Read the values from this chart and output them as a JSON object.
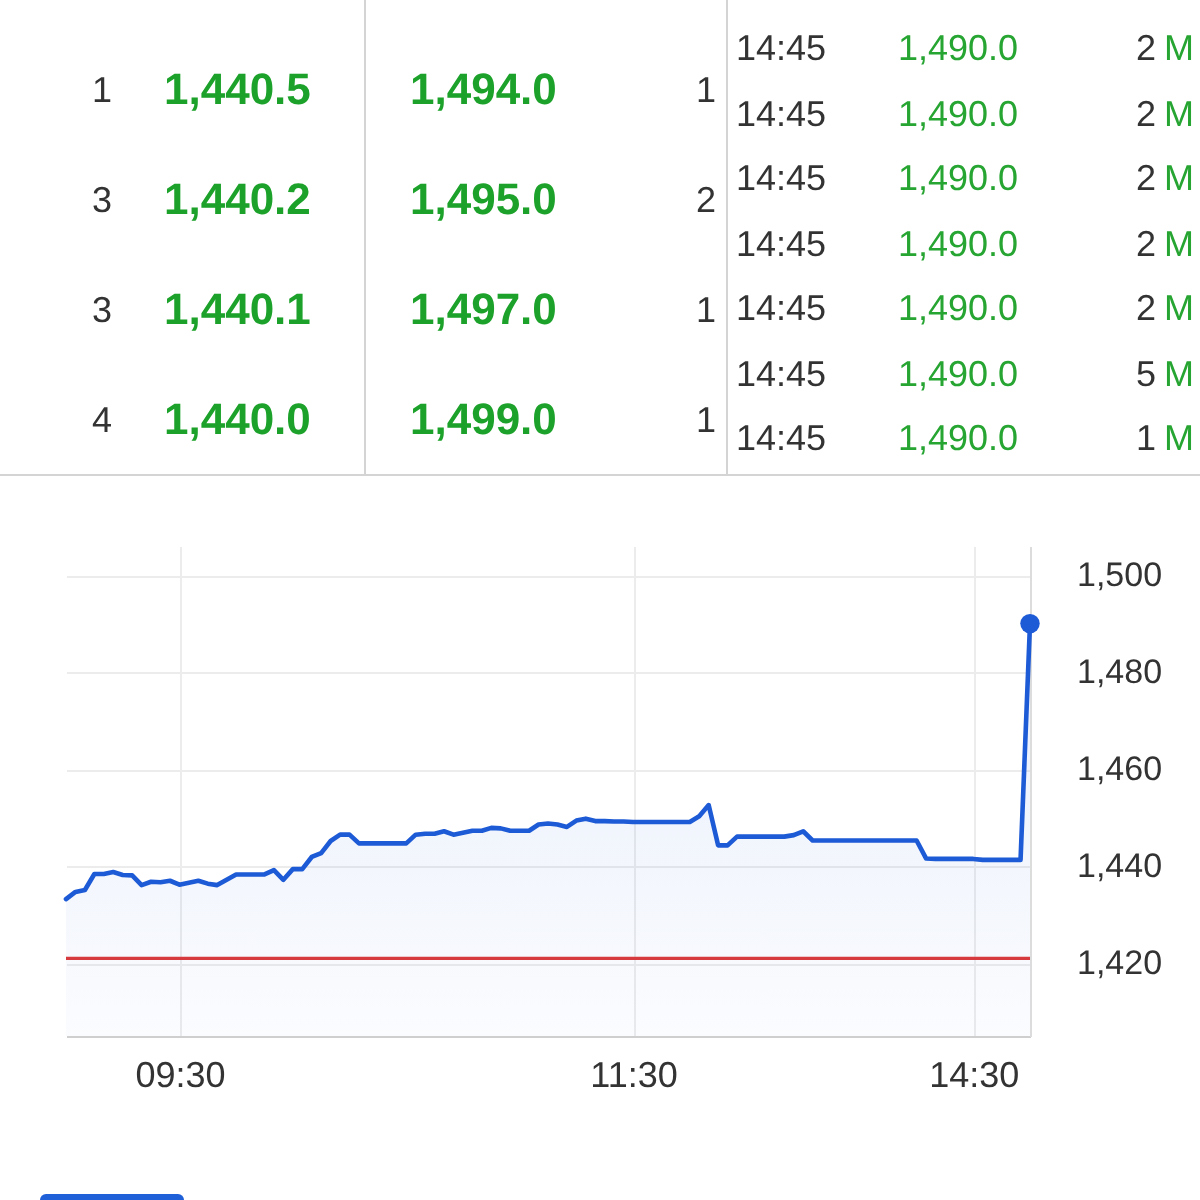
{
  "chart_data": [
    {
      "type": "other",
      "annotations": [
        "1",
        "1,440.5",
        "1,494.0",
        "1",
        "3",
        "1,440.2",
        "1,495.0",
        "2",
        "3",
        "1,440.1",
        "1,497.0",
        "1",
        "4",
        "1,440.0",
        "1,499.0",
        "1"
      ]
    },
    {
      "type": "other",
      "annotations": [
        "14:45",
        "1,490.0",
        "2",
        "M",
        "14:45",
        "1,490.0",
        "2",
        "M",
        "14:45",
        "1,490.0",
        "2",
        "M",
        "14:45",
        "1,490.0",
        "2",
        "M",
        "14:45",
        "1,490.0",
        "2",
        "M",
        "14:45",
        "1,490.0",
        "5",
        "M",
        "14:45",
        "1,490.0",
        "1",
        "M"
      ]
    },
    {
      "type": "area",
      "categories": [
        null,
        null,
        null,
        null,
        null,
        null,
        null,
        null,
        null,
        null,
        null,
        null,
        "09:30",
        null,
        null,
        null,
        null,
        null,
        null,
        null,
        null,
        null,
        null,
        null,
        null,
        null,
        null,
        null,
        null,
        null,
        null,
        null,
        null,
        null,
        null,
        null,
        null,
        null,
        null,
        null,
        null,
        null,
        null,
        null,
        null,
        null,
        null,
        null,
        null,
        null,
        null,
        null,
        null,
        null,
        null,
        null,
        null,
        null,
        null,
        null,
        "11:30",
        null,
        null,
        null,
        null,
        null,
        null,
        null,
        null,
        null,
        null,
        null,
        null,
        null,
        null,
        null,
        null,
        null,
        null,
        null,
        null,
        null,
        null,
        null,
        null,
        null,
        null,
        null,
        null,
        null,
        null,
        null,
        null,
        null,
        null,
        null,
        "14:30",
        null,
        null,
        null,
        null,
        null,
        null
      ],
      "series": [
        {
          "type": "area",
          "color": "#1d5ad6",
          "values": [
            1433.2,
            1434.7,
            1435.1,
            1438.4,
            1438.4,
            1438.8,
            1438.2,
            1438.1,
            1436.1,
            1436.8,
            1436.7,
            1437.0,
            1436.2,
            1436.6,
            1437.0,
            1436.4,
            1436.1,
            1437.2,
            1438.3,
            1438.3,
            1438.3,
            1438.3,
            1439.2,
            1437.2,
            1439.4,
            1439.4,
            1441.9,
            1442.7,
            1445.2,
            1446.5,
            1446.5,
            1444.7,
            1444.7,
            1444.7,
            1444.7,
            1444.7,
            1444.7,
            1446.5,
            1446.7,
            1446.7,
            1447.2,
            1446.5,
            1446.9,
            1447.3,
            1447.3,
            1447.9,
            1447.8,
            1447.3,
            1447.3,
            1447.3,
            1448.6,
            1448.8,
            1448.6,
            1448.1,
            1449.4,
            1449.8,
            1449.3,
            1449.3,
            1449.2,
            1449.2,
            1449.1,
            1449.1,
            1449.1,
            1449.1,
            1449.1,
            1449.1,
            1449.1,
            1450.3,
            1452.6,
            1444.3,
            1444.3,
            1446.1,
            1446.1,
            1446.1,
            1446.1,
            1446.1,
            1446.1,
            1446.4,
            1447.2,
            1445.3,
            1445.3,
            1445.3,
            1445.3,
            1445.3,
            1445.3,
            1445.3,
            1445.3,
            1445.3,
            1445.3,
            1445.3,
            1445.3,
            1441.6,
            1441.5,
            1441.5,
            1441.5,
            1441.5,
            1441.5,
            1441.3,
            1441.3,
            1441.3,
            1441.3,
            1441.3,
            1490
          ]
        },
        {
          "type": "scatter",
          "color": "#1d5ad6",
          "marker": "circle",
          "values": [
            null,
            null,
            null,
            null,
            null,
            null,
            null,
            null,
            null,
            null,
            null,
            null,
            null,
            null,
            null,
            null,
            null,
            null,
            null,
            null,
            null,
            null,
            null,
            null,
            null,
            null,
            null,
            null,
            null,
            null,
            null,
            null,
            null,
            null,
            null,
            null,
            null,
            null,
            null,
            null,
            null,
            null,
            null,
            null,
            null,
            null,
            null,
            null,
            null,
            null,
            null,
            null,
            null,
            null,
            null,
            null,
            null,
            null,
            null,
            null,
            null,
            null,
            null,
            null,
            null,
            null,
            null,
            null,
            null,
            null,
            null,
            null,
            null,
            null,
            null,
            null,
            null,
            null,
            null,
            null,
            null,
            null,
            null,
            null,
            null,
            null,
            null,
            null,
            null,
            null,
            null,
            null,
            null,
            null,
            null,
            null,
            null,
            null,
            null,
            null,
            null,
            null,
            1490
          ]
        }
      ],
      "ylim": [
        1405,
        1506
      ],
      "yticks": [
        {
          "value": 1420,
          "label": "1,420"
        },
        {
          "value": 1440,
          "label": "1,440"
        },
        {
          "value": 1460,
          "label": "1,460"
        },
        {
          "value": 1480,
          "label": "1,480"
        },
        {
          "value": 1500,
          "label": "1,500"
        }
      ],
      "grid": true,
      "ref_lines": [
        {
          "axis": "y",
          "value": 1421,
          "color": "#d63a3f"
        }
      ]
    }
  ]
}
